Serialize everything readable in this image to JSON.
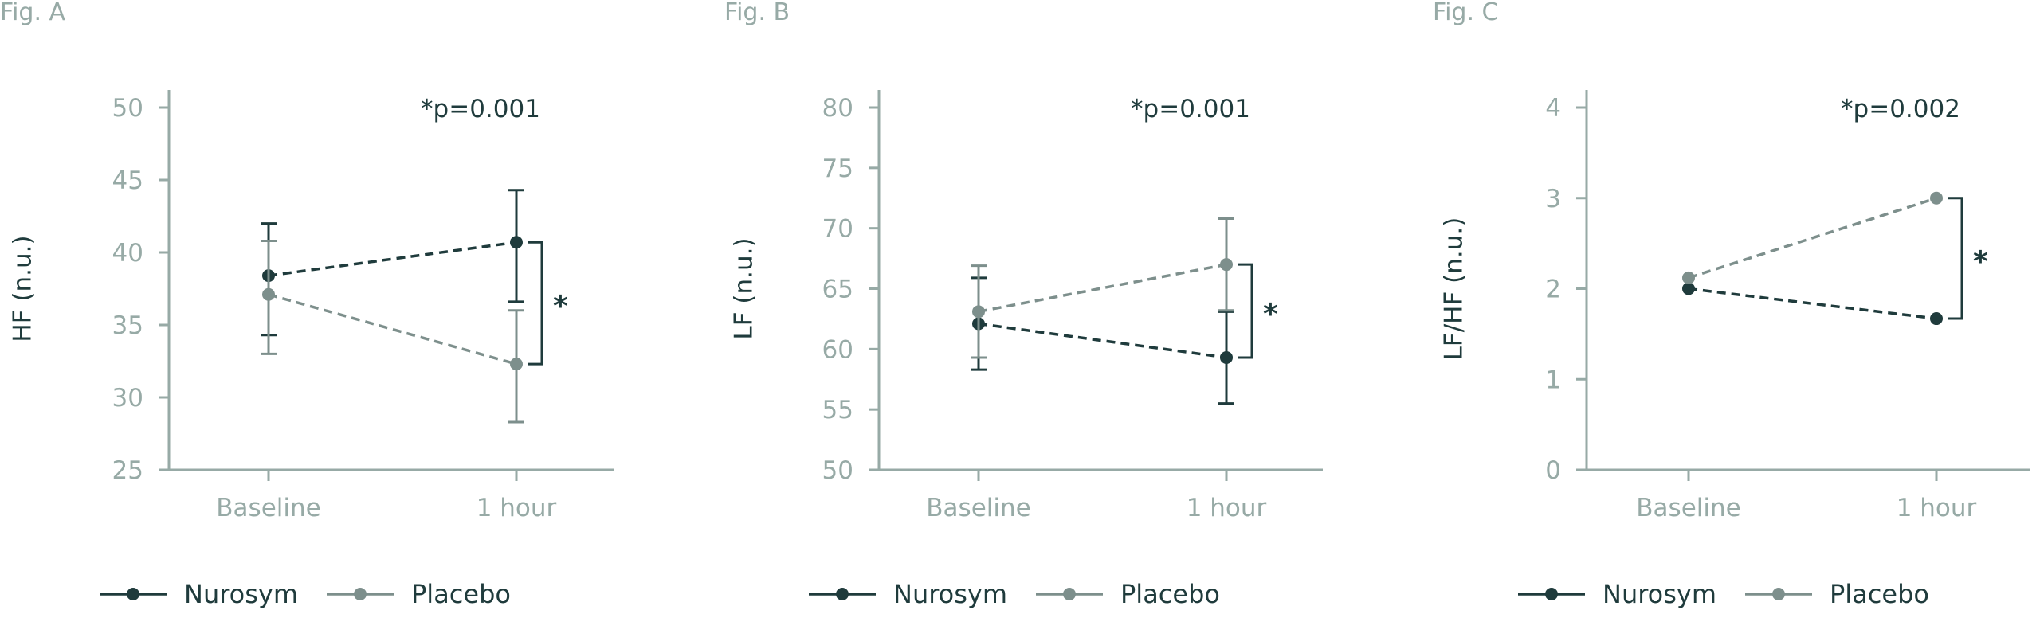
{
  "colors": {
    "nurosym": "#1f3b3c",
    "placebo": "#7d8f8c",
    "axis": "#97aaa6"
  },
  "chart_data": [
    {
      "type": "line",
      "fig_label": "Fig. A",
      "ylabel": "HF (n.u.)",
      "categories": [
        "Baseline",
        "1 hour"
      ],
      "ylim": [
        25,
        50
      ],
      "yticks": [
        25,
        30,
        35,
        40,
        45,
        50
      ],
      "annotation": "*p=0.001",
      "significance_marker": "*",
      "series": [
        {
          "name": "Nurosym",
          "values": [
            38.4,
            40.7
          ],
          "err_low": [
            34.3,
            36.6
          ],
          "err_high": [
            42.0,
            44.3
          ]
        },
        {
          "name": "Placebo",
          "values": [
            37.1,
            32.3
          ],
          "err_low": [
            33.0,
            28.3
          ],
          "err_high": [
            40.8,
            36.0
          ]
        }
      ]
    },
    {
      "type": "line",
      "fig_label": "Fig. B",
      "ylabel": "LF (n.u.)",
      "categories": [
        "Baseline",
        "1 hour"
      ],
      "ylim": [
        50,
        80
      ],
      "yticks": [
        50,
        55,
        60,
        65,
        70,
        75,
        80
      ],
      "annotation": "*p=0.001",
      "significance_marker": "*",
      "series": [
        {
          "name": "Nurosym",
          "values": [
            62.1,
            59.3
          ],
          "err_low": [
            58.3,
            55.5
          ],
          "err_high": [
            65.9,
            63.1
          ]
        },
        {
          "name": "Placebo",
          "values": [
            63.1,
            67.0
          ],
          "err_low": [
            59.3,
            63.2
          ],
          "err_high": [
            66.9,
            70.8
          ]
        }
      ]
    },
    {
      "type": "line",
      "fig_label": "Fig. C",
      "ylabel": "LF/HF (n.u.)",
      "categories": [
        "Baseline",
        "1 hour"
      ],
      "ylim": [
        0,
        4
      ],
      "yticks": [
        0,
        1,
        2,
        3,
        4
      ],
      "annotation": "*p=0.002",
      "significance_marker": "*",
      "series": [
        {
          "name": "Nurosym",
          "values": [
            2.0,
            1.67
          ]
        },
        {
          "name": "Placebo",
          "values": [
            2.12,
            3.0
          ]
        }
      ]
    }
  ],
  "legend": [
    {
      "name": "Nurosym"
    },
    {
      "name": "Placebo"
    }
  ]
}
